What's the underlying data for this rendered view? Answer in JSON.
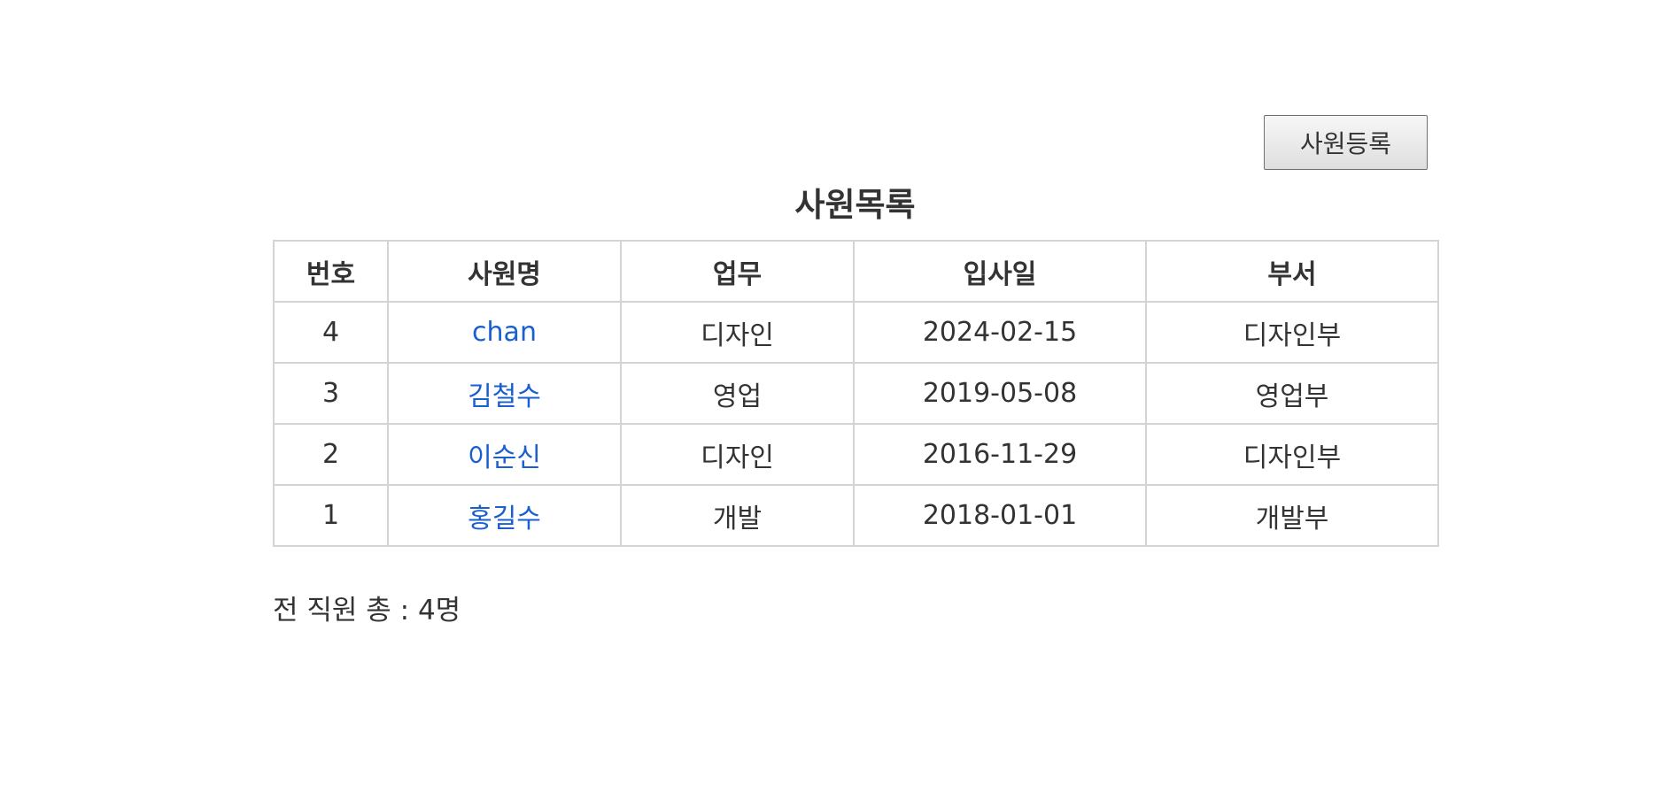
{
  "page": {
    "register_button": "사원등록",
    "title": "사원목록"
  },
  "table": {
    "headers": [
      "번호",
      "사원명",
      "업무",
      "입사일",
      "부서"
    ],
    "rows": [
      {
        "no": "4",
        "name": "chan",
        "job": "디자인",
        "hire_date": "2024-02-15",
        "dept": "디자인부"
      },
      {
        "no": "3",
        "name": "김철수",
        "job": "영업",
        "hire_date": "2019-05-08",
        "dept": "영업부"
      },
      {
        "no": "2",
        "name": "이순신",
        "job": "디자인",
        "hire_date": "2016-11-29",
        "dept": "디자인부"
      },
      {
        "no": "1",
        "name": "홍길수",
        "job": "개발",
        "hire_date": "2018-01-01",
        "dept": "개발부"
      }
    ]
  },
  "footer": {
    "total_text": "전 직원 총 : 4명"
  },
  "colors": {
    "link": "#1a5fcf",
    "border": "#d4d4d4",
    "text": "#333333"
  }
}
